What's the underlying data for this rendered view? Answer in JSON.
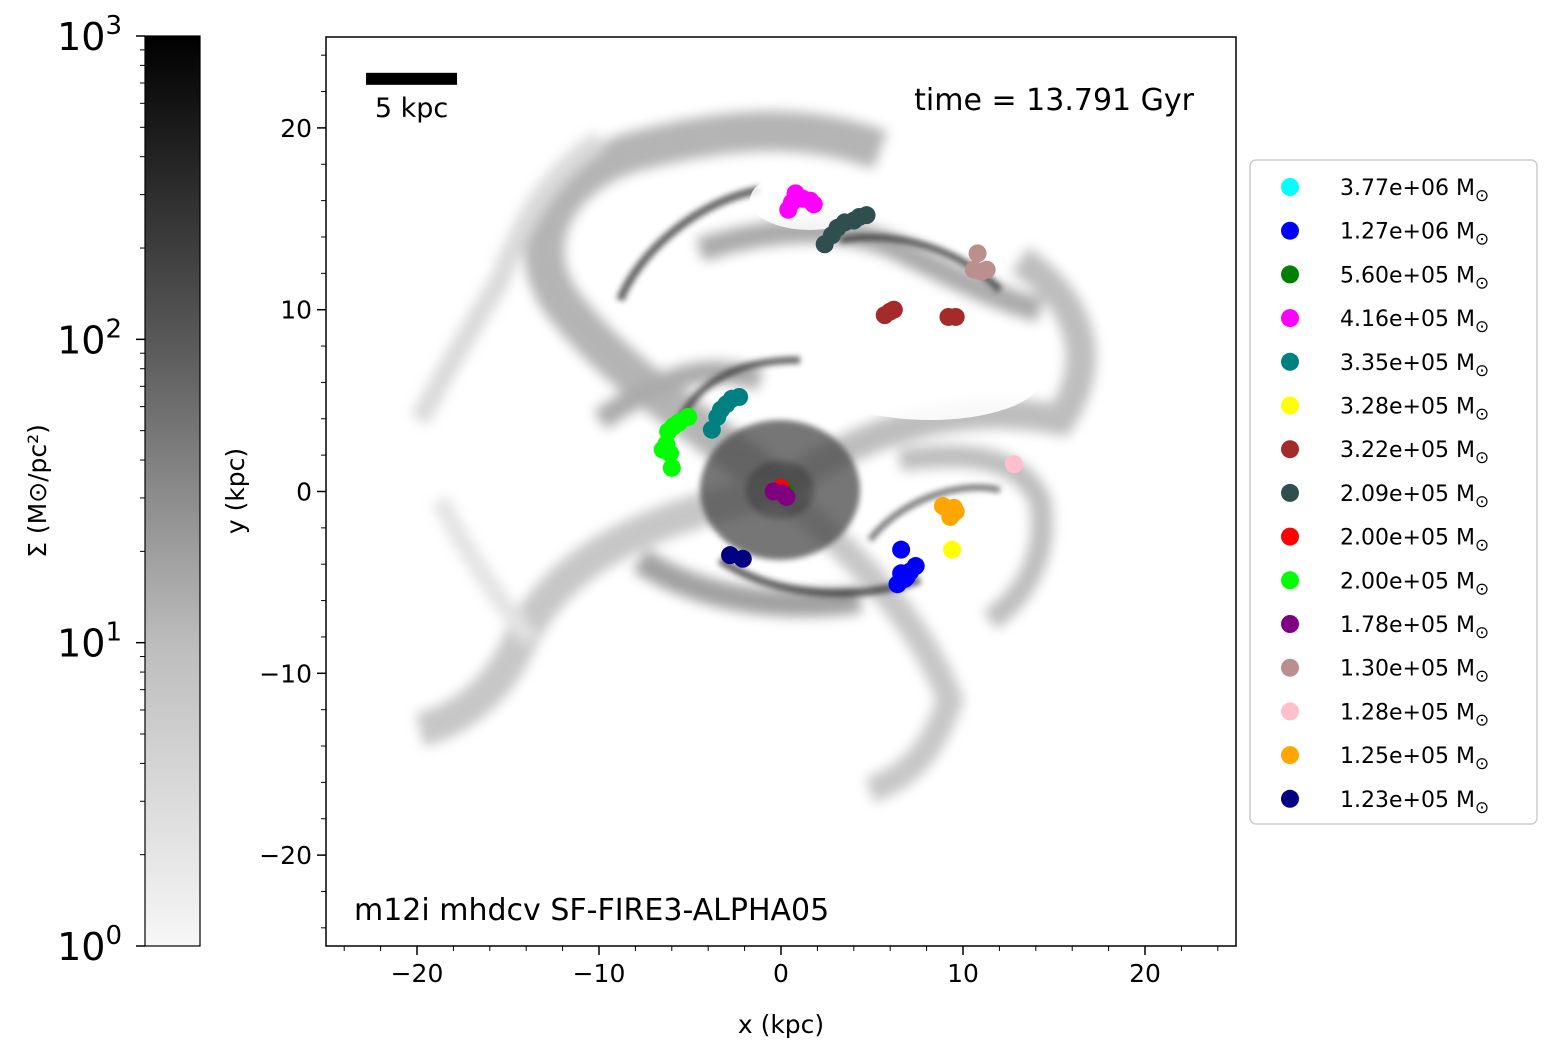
{
  "colorbar": {
    "label": "Σ (M⊙/pc²)",
    "ticks": [
      {
        "value": 1,
        "base": "10",
        "exp": "0"
      },
      {
        "value": 10,
        "base": "10",
        "exp": "1"
      },
      {
        "value": 100,
        "base": "10",
        "exp": "2"
      },
      {
        "value": 1000,
        "base": "10",
        "exp": "3"
      }
    ],
    "range": [
      1,
      1000
    ],
    "scale": "log",
    "colormap": "greys"
  },
  "chart_data": {
    "type": "scatter",
    "background": "grayscale gas surface density map of a spiral galaxy (log scale)",
    "xlabel": "x (kpc)",
    "ylabel": "y (kpc)",
    "xlim": [
      -25,
      25
    ],
    "ylim": [
      -25,
      25
    ],
    "xticks": [
      -20,
      -10,
      0,
      10,
      20
    ],
    "yticks": [
      -20,
      -10,
      0,
      10,
      20
    ],
    "xtick_labels": [
      "−20",
      "−10",
      "0",
      "10",
      "20"
    ],
    "ytick_labels": [
      "−20",
      "−10",
      "0",
      "10",
      "20"
    ],
    "grid": false,
    "legend_position": "outside-right",
    "annotations": {
      "time": "time = 13.791 Gyr",
      "simulation": "m12i mhdcv SF-FIRE3-ALPHA05",
      "scale_bar_label": "5 kpc",
      "scale_bar_length_kpc": 5,
      "scale_bar_start_kpc": [
        -22.8,
        22.7
      ]
    },
    "series": [
      {
        "name": "3.77e+06 M",
        "color": "#00ffff",
        "points": []
      },
      {
        "name": "1.27e+06 M",
        "color": "#0000ff",
        "points": [
          [
            6.6,
            -3.2
          ],
          [
            6.6,
            -4.5
          ],
          [
            7.1,
            -4.4
          ],
          [
            7.4,
            -4.1
          ],
          [
            6.8,
            -4.8
          ],
          [
            6.4,
            -5.1
          ],
          [
            6.9,
            -4.7
          ]
        ]
      },
      {
        "name": "5.60e+05 M",
        "color": "#008000",
        "points": [
          [
            0.2,
            0.1
          ]
        ]
      },
      {
        "name": "4.16e+05 M",
        "color": "#ff00ff",
        "points": [
          [
            0.4,
            15.5
          ],
          [
            0.6,
            15.9
          ],
          [
            0.8,
            16.4
          ],
          [
            1.2,
            16.1
          ],
          [
            1.6,
            16.0
          ],
          [
            1.8,
            15.8
          ]
        ]
      },
      {
        "name": "3.35e+05 M",
        "color": "#008080",
        "points": [
          [
            -3.8,
            3.4
          ],
          [
            -3.5,
            4.1
          ],
          [
            -3.3,
            4.5
          ],
          [
            -3.0,
            4.8
          ],
          [
            -2.7,
            5.1
          ],
          [
            -2.3,
            5.2
          ]
        ]
      },
      {
        "name": "3.28e+05 M",
        "color": "#ffff00",
        "points": [
          [
            9.4,
            -3.2
          ]
        ]
      },
      {
        "name": "3.22e+05 M",
        "color": "#a52a2a",
        "points": [
          [
            5.7,
            9.7
          ],
          [
            6.0,
            9.9
          ],
          [
            6.2,
            10.0
          ],
          [
            9.2,
            9.6
          ],
          [
            9.6,
            9.6
          ]
        ]
      },
      {
        "name": "2.09e+05 M",
        "color": "#2f4f4f",
        "points": [
          [
            2.4,
            13.6
          ],
          [
            2.8,
            14.1
          ],
          [
            3.1,
            14.5
          ],
          [
            3.5,
            14.8
          ],
          [
            4.0,
            14.9
          ],
          [
            4.3,
            15.1
          ],
          [
            4.7,
            15.2
          ]
        ]
      },
      {
        "name": "2.00e+05 M",
        "color": "#ff0000",
        "points": [
          [
            0.0,
            0.2
          ]
        ]
      },
      {
        "name": "2.00e+05 M",
        "color": "#00ff00",
        "points": [
          [
            -6.0,
            1.3
          ],
          [
            -6.5,
            2.3
          ],
          [
            -6.3,
            2.6
          ],
          [
            -6.2,
            3.3
          ],
          [
            -5.9,
            3.6
          ],
          [
            -5.6,
            3.8
          ],
          [
            -5.1,
            4.1
          ],
          [
            -6.1,
            2.1
          ]
        ]
      },
      {
        "name": "1.78e+05 M",
        "color": "#800080",
        "points": [
          [
            -0.4,
            0.0
          ],
          [
            0.1,
            -0.1
          ],
          [
            0.3,
            -0.3
          ]
        ]
      },
      {
        "name": "1.30e+05 M",
        "color": "#bc8f8f",
        "points": [
          [
            10.8,
            13.1
          ],
          [
            10.6,
            12.2
          ],
          [
            11.0,
            12.1
          ],
          [
            11.3,
            12.2
          ]
        ]
      },
      {
        "name": "1.28e+05 M",
        "color": "#ffc0cb",
        "points": [
          [
            12.8,
            1.5
          ]
        ]
      },
      {
        "name": "1.25e+05 M",
        "color": "#ffa500",
        "points": [
          [
            8.9,
            -0.8
          ],
          [
            9.2,
            -1.0
          ],
          [
            9.5,
            -0.9
          ],
          [
            9.3,
            -1.4
          ],
          [
            9.6,
            -1.1
          ]
        ]
      },
      {
        "name": "1.23e+05 M",
        "color": "#000080",
        "points": [
          [
            -2.8,
            -3.5
          ],
          [
            -2.1,
            -3.7
          ]
        ]
      }
    ]
  }
}
